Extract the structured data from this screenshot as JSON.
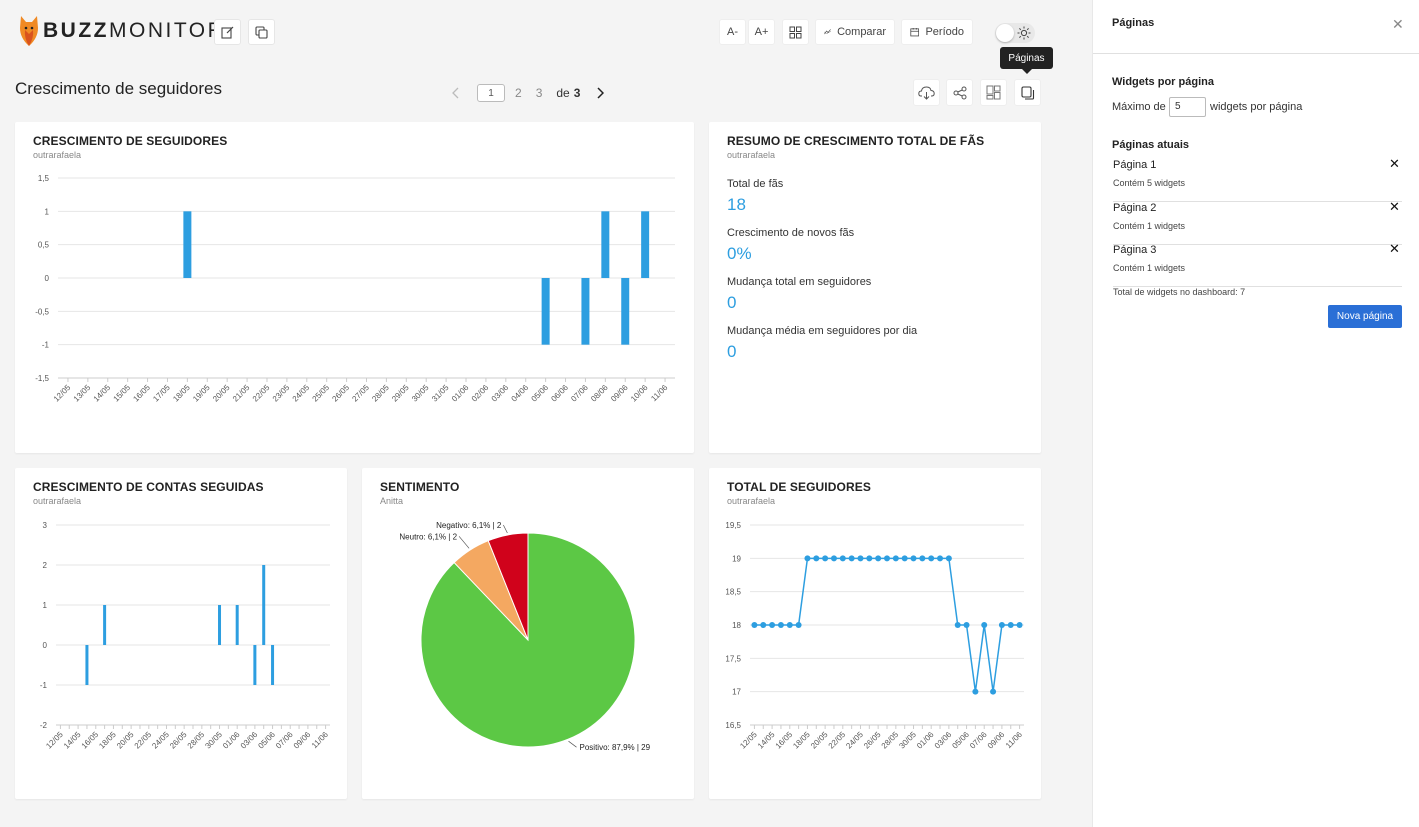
{
  "brand": {
    "name_bold": "BUZZ",
    "name_thin": "MONITOR"
  },
  "toolbar": {
    "font_decrease": "A-",
    "font_increase": "A+",
    "compare_label": "Comparar",
    "period_label": "Período"
  },
  "tooltip": "Páginas",
  "page": {
    "title": "Crescimento de seguidores"
  },
  "pager": {
    "current": "1",
    "pages": [
      "2",
      "3"
    ],
    "of_label": "de",
    "total": "3"
  },
  "widgets": {
    "growth": {
      "title": "CRESCIMENTO DE SEGUIDORES",
      "subtitle": "outrarafaela"
    },
    "summary": {
      "title": "RESUMO DE CRESCIMENTO TOTAL DE FÃS",
      "subtitle": "outrarafaela",
      "items": [
        {
          "label": "Total de fãs",
          "value": "18"
        },
        {
          "label": "Crescimento de novos fãs",
          "value": "0%"
        },
        {
          "label": "Mudança total em seguidores",
          "value": "0"
        },
        {
          "label": "Mudança média em seguidores por dia",
          "value": "0"
        }
      ]
    },
    "following": {
      "title": "CRESCIMENTO DE CONTAS SEGUIDAS",
      "subtitle": "outrarafaela"
    },
    "sentiment": {
      "title": "SENTIMENTO",
      "subtitle": "Anitta"
    },
    "total": {
      "title": "TOTAL DE SEGUIDORES",
      "subtitle": "outrarafaela"
    }
  },
  "chart_data": [
    {
      "type": "bar",
      "title": "CRESCIMENTO DE SEGUIDORES",
      "categories": [
        "12/05",
        "13/05",
        "14/05",
        "15/05",
        "16/05",
        "17/05",
        "18/05",
        "19/05",
        "20/05",
        "21/05",
        "22/05",
        "23/05",
        "24/05",
        "25/05",
        "26/05",
        "27/05",
        "28/05",
        "29/05",
        "30/05",
        "31/05",
        "01/06",
        "02/06",
        "03/06",
        "04/06",
        "05/06",
        "06/06",
        "07/06",
        "08/06",
        "09/06",
        "10/06",
        "11/06"
      ],
      "values": [
        0,
        0,
        0,
        0,
        0,
        0,
        1,
        0,
        0,
        0,
        0,
        0,
        0,
        0,
        0,
        0,
        0,
        0,
        0,
        0,
        0,
        0,
        0,
        0,
        -1,
        0,
        -1,
        1,
        -1,
        1,
        0
      ],
      "yticks": [
        "1,5",
        "1",
        "0,5",
        "0",
        "-0,5",
        "-1",
        "-1,5"
      ],
      "ylim": [
        -1.5,
        1.5
      ],
      "color": "#2d9ee0",
      "grid": true
    },
    {
      "type": "bar",
      "title": "CRESCIMENTO DE CONTAS SEGUIDAS",
      "categories": [
        "12/05",
        "13/05",
        "14/05",
        "15/05",
        "16/05",
        "17/05",
        "18/05",
        "19/05",
        "20/05",
        "21/05",
        "22/05",
        "23/05",
        "24/05",
        "25/05",
        "26/05",
        "27/05",
        "28/05",
        "29/05",
        "30/05",
        "31/05",
        "01/06",
        "02/06",
        "03/06",
        "04/06",
        "05/06",
        "06/06",
        "07/06",
        "08/06",
        "09/06",
        "10/06",
        "11/06"
      ],
      "xticklabels": [
        "12/05",
        "14/05",
        "16/05",
        "18/05",
        "20/05",
        "22/05",
        "24/05",
        "26/05",
        "28/05",
        "30/05",
        "01/06",
        "03/06",
        "05/06",
        "07/06",
        "09/06",
        "11/06"
      ],
      "values": [
        0,
        0,
        0,
        -1,
        0,
        1,
        0,
        0,
        0,
        0,
        0,
        0,
        0,
        0,
        0,
        0,
        0,
        0,
        1,
        0,
        1,
        0,
        -1,
        2,
        -1,
        0,
        0,
        0,
        0,
        0,
        0
      ],
      "yticks": [
        "3",
        "2",
        "1",
        "0",
        "-1",
        "-2"
      ],
      "ylim": [
        -2,
        3
      ],
      "color": "#2d9ee0",
      "grid": true
    },
    {
      "type": "pie",
      "title": "SENTIMENTO",
      "slices": [
        {
          "label": "Positivo: 87,9% | 29",
          "value": 29,
          "color": "#5cc845"
        },
        {
          "label": "Neutro: 6,1% | 2",
          "value": 2,
          "color": "#f4a861"
        },
        {
          "label": "Negativo: 6,1% | 2",
          "value": 2,
          "color": "#d0021b"
        }
      ]
    },
    {
      "type": "line",
      "title": "TOTAL DE SEGUIDORES",
      "categories": [
        "12/05",
        "13/05",
        "14/05",
        "15/05",
        "16/05",
        "17/05",
        "18/05",
        "19/05",
        "20/05",
        "21/05",
        "22/05",
        "23/05",
        "24/05",
        "25/05",
        "26/05",
        "27/05",
        "28/05",
        "29/05",
        "30/05",
        "31/05",
        "01/06",
        "02/06",
        "03/06",
        "04/06",
        "05/06",
        "06/06",
        "07/06",
        "08/06",
        "09/06",
        "10/06",
        "11/06"
      ],
      "xticklabels": [
        "12/05",
        "14/05",
        "16/05",
        "18/05",
        "20/05",
        "22/05",
        "24/05",
        "26/05",
        "28/05",
        "30/05",
        "01/06",
        "03/06",
        "05/06",
        "07/06",
        "09/06",
        "11/06"
      ],
      "values": [
        18,
        18,
        18,
        18,
        18,
        18,
        19,
        19,
        19,
        19,
        19,
        19,
        19,
        19,
        19,
        19,
        19,
        19,
        19,
        19,
        19,
        19,
        19,
        18,
        18,
        17,
        18,
        17,
        18,
        18,
        18
      ],
      "yticks": [
        "19,5",
        "19",
        "18,5",
        "18",
        "17,5",
        "17",
        "16,5"
      ],
      "ylim": [
        16.5,
        19.5
      ],
      "color": "#2d9ee0",
      "grid": true
    }
  ],
  "panel": {
    "title": "Páginas",
    "widgets_per_page_heading": "Widgets por página",
    "max_prefix": "Máximo de",
    "max_value": "5",
    "max_suffix": "widgets por página",
    "current_pages_heading": "Páginas atuais",
    "pages": [
      {
        "name": "Página 1",
        "count": "Contém 5 widgets"
      },
      {
        "name": "Página 2",
        "count": "Contém 1 widgets"
      },
      {
        "name": "Página 3",
        "count": "Contém 1 widgets"
      }
    ],
    "total_widgets": "Total de widgets no dashboard: 7",
    "new_page_button": "Nova página"
  }
}
